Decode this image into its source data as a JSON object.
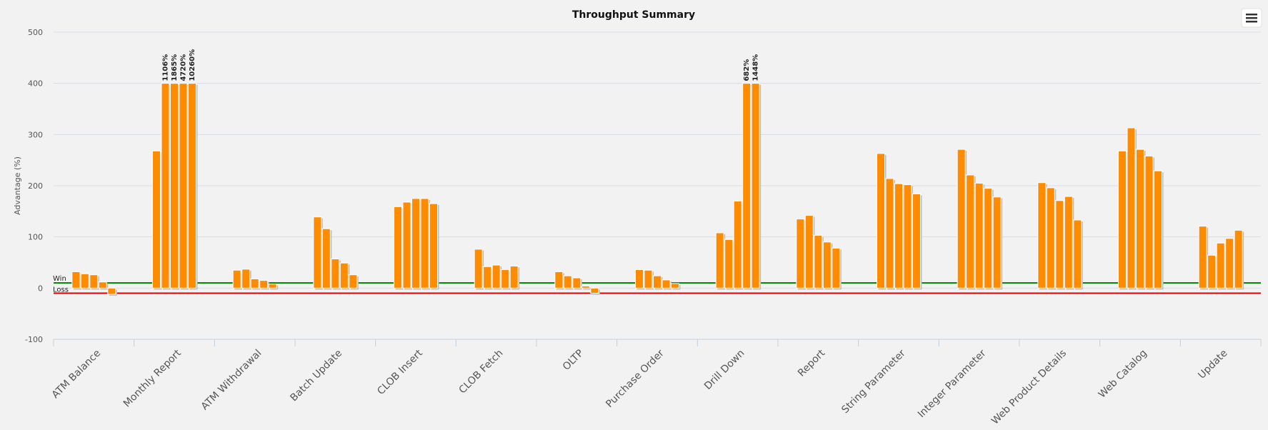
{
  "chart_data": {
    "type": "bar",
    "title": "Throughput Summary",
    "xlabel": "",
    "ylabel": "Advantage (%)",
    "ylim": [
      -100,
      500
    ],
    "yticks": [
      500,
      400,
      300,
      200,
      100,
      0,
      -100
    ],
    "grid": true,
    "legend": "none",
    "bar_color": "#ff8c00",
    "win_line": {
      "label": "Win",
      "value": 10,
      "color": "#008000"
    },
    "loss_line": {
      "label": "Loss",
      "value": -10,
      "color": "#e00000"
    },
    "categories": [
      "ATM Balance",
      "Monthly Report",
      "ATM Withdrawal",
      "Batch Update",
      "CLOB Insert",
      "CLOB Fetch",
      "OLTP",
      "Purchase Order",
      "Drill Down",
      "Report",
      "String Parameter",
      "Integer Parameter",
      "Web Product Details",
      "Web Catalog",
      "Update"
    ],
    "groups": [
      {
        "values": [
          32,
          28,
          26,
          12,
          -12
        ],
        "labels": [
          "",
          "",
          "",
          "",
          ""
        ]
      },
      {
        "values": [
          268,
          400,
          400,
          400,
          400
        ],
        "labels": [
          "",
          "1106%",
          "1865%",
          "4720%",
          "10260%"
        ]
      },
      {
        "values": [
          35,
          37,
          18,
          15,
          8
        ],
        "labels": [
          "",
          "",
          "",
          "",
          ""
        ]
      },
      {
        "values": [
          139,
          116,
          57,
          49,
          26
        ],
        "labels": [
          "",
          "",
          "",
          "",
          ""
        ]
      },
      {
        "values": [
          159,
          168,
          175,
          175,
          165
        ],
        "labels": [
          "",
          "",
          "",
          "",
          ""
        ]
      },
      {
        "values": [
          76,
          42,
          45,
          36,
          43
        ],
        "labels": [
          "",
          "",
          "",
          "",
          ""
        ]
      },
      {
        "values": [
          32,
          24,
          20,
          4,
          -10
        ],
        "labels": [
          "",
          "",
          "",
          "",
          ""
        ]
      },
      {
        "values": [
          36,
          35,
          24,
          16,
          9
        ],
        "labels": [
          "",
          "",
          "",
          "",
          ""
        ]
      },
      {
        "values": [
          108,
          95,
          170,
          400,
          400
        ],
        "labels": [
          "",
          "",
          "",
          "682%",
          "1448%"
        ]
      },
      {
        "values": [
          135,
          142,
          103,
          90,
          78
        ],
        "labels": [
          "",
          "",
          "",
          "",
          ""
        ]
      },
      {
        "values": [
          263,
          214,
          204,
          202,
          184
        ],
        "labels": [
          "",
          "",
          "",
          "",
          ""
        ]
      },
      {
        "values": [
          271,
          221,
          205,
          195,
          178
        ],
        "labels": [
          "",
          "",
          "",
          "",
          ""
        ]
      },
      {
        "values": [
          206,
          196,
          171,
          179,
          133
        ],
        "labels": [
          "",
          "",
          "",
          "",
          ""
        ]
      },
      {
        "values": [
          268,
          313,
          271,
          258,
          229
        ],
        "labels": [
          "",
          "",
          "",
          "",
          ""
        ]
      },
      {
        "values": [
          121,
          64,
          88,
          97,
          113
        ],
        "labels": [
          "",
          "",
          "",
          "",
          ""
        ]
      }
    ]
  },
  "menu": {
    "icon": "hamburger-menu-icon"
  }
}
